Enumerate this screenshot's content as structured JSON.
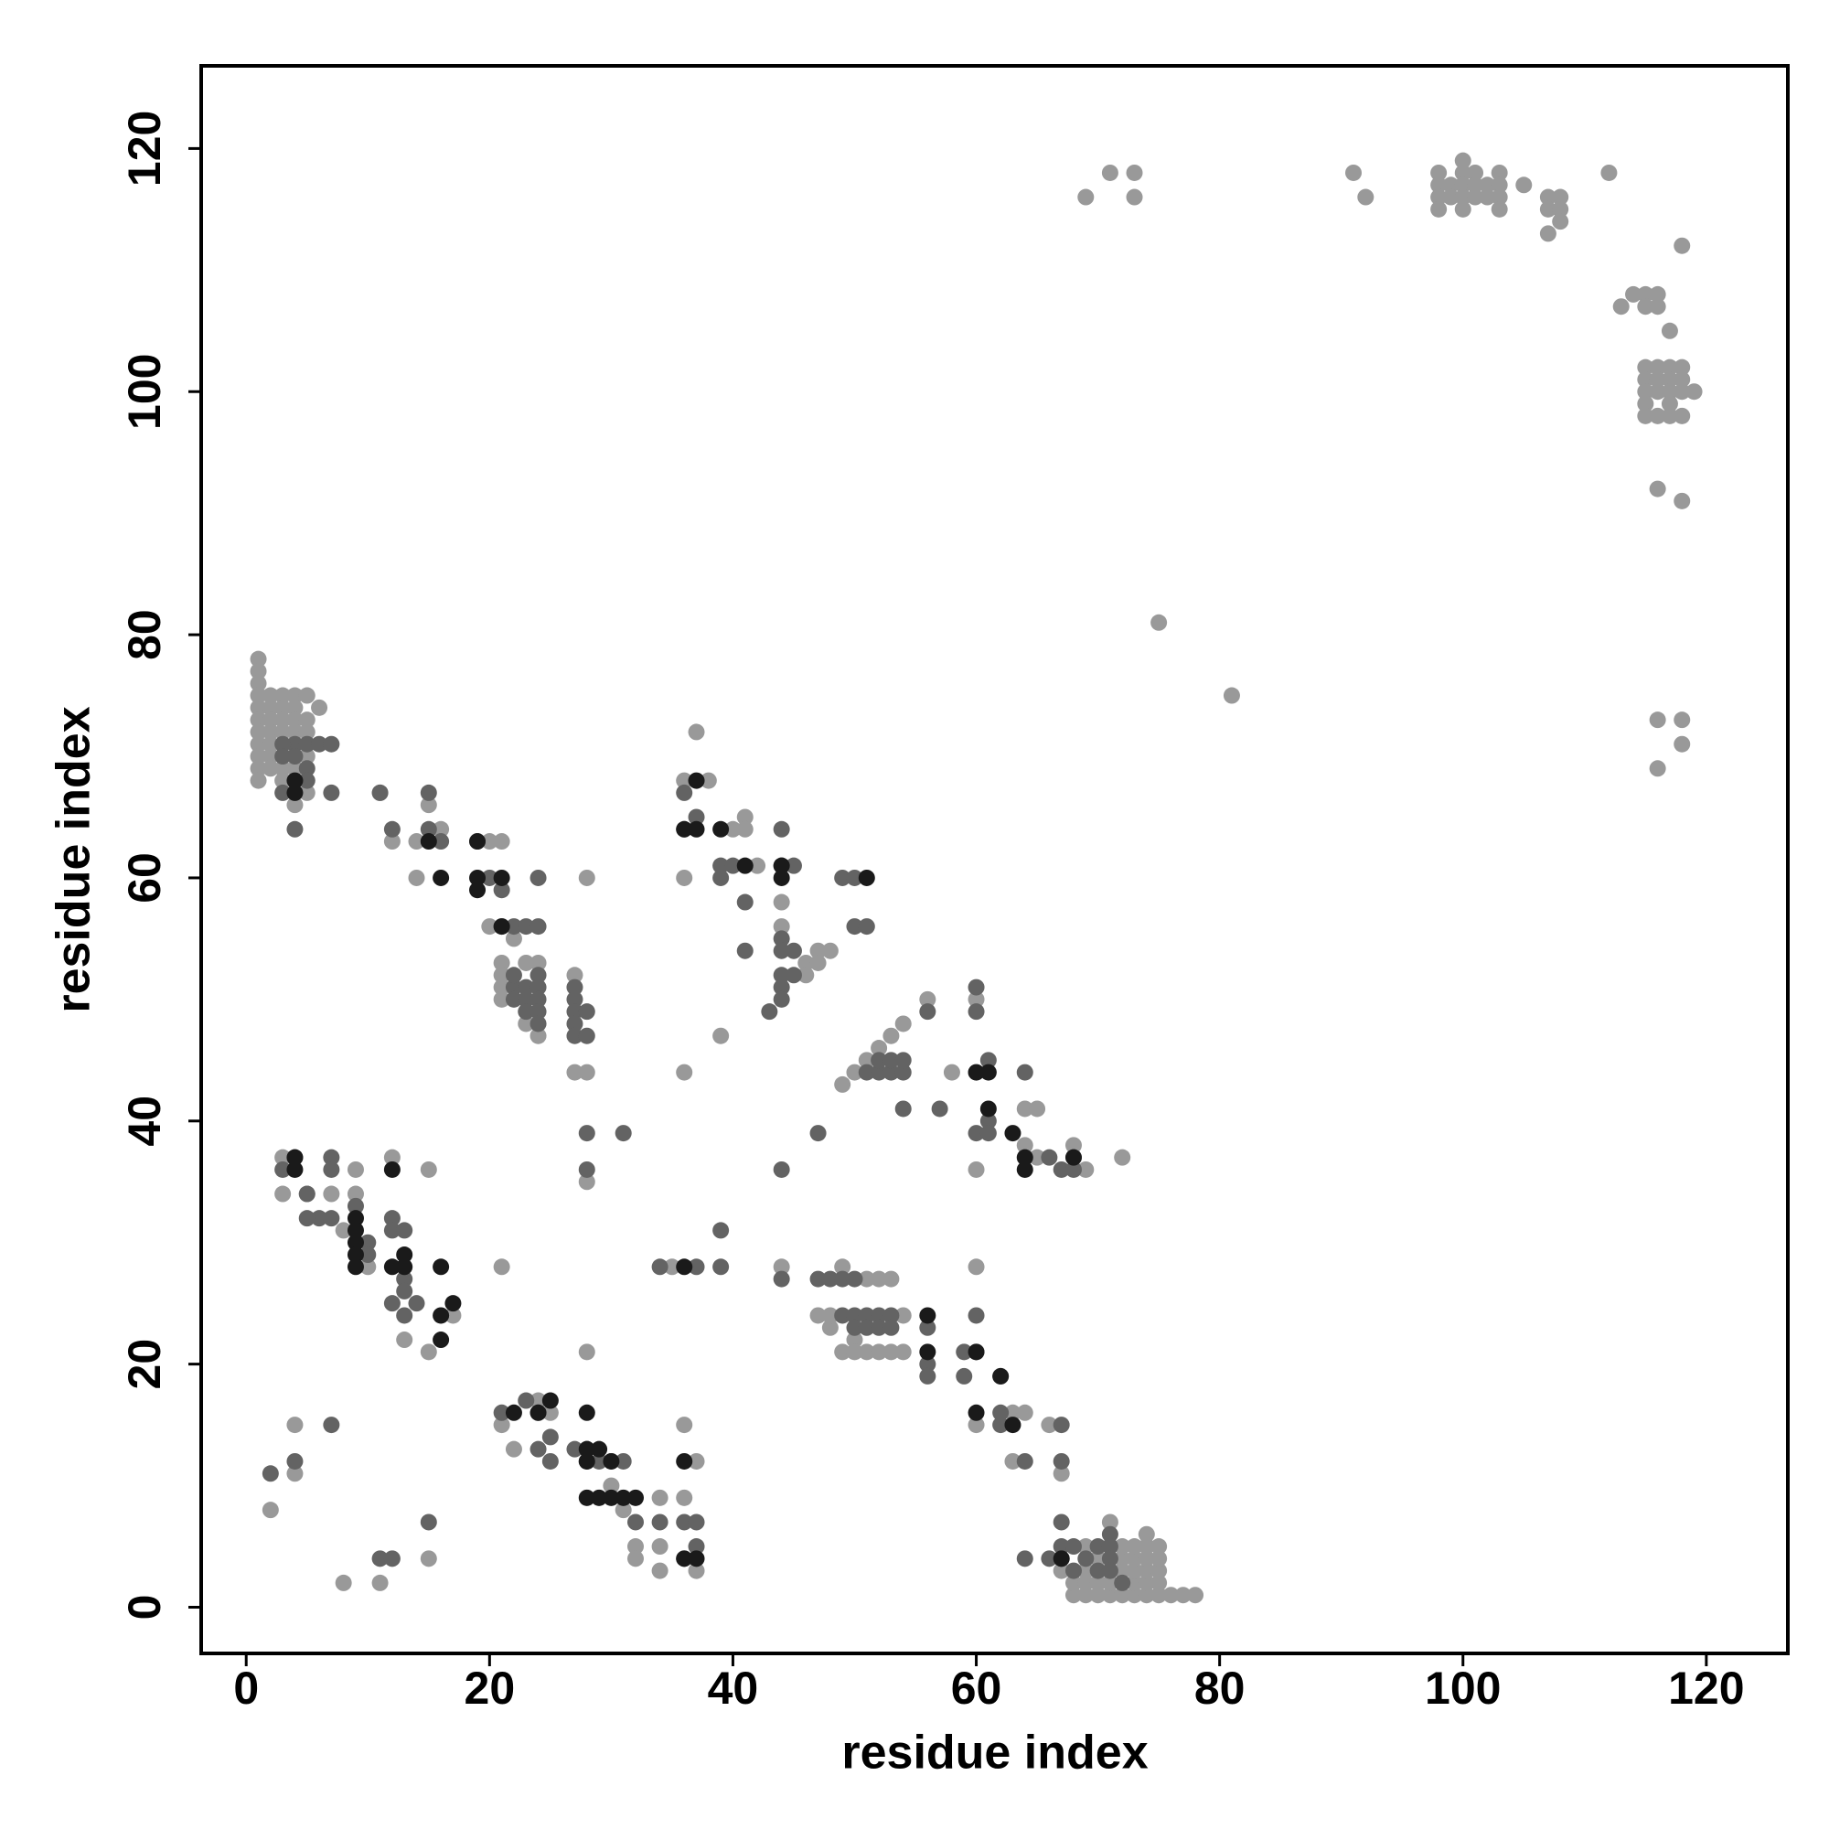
{
  "chart_data": {
    "type": "scatter",
    "xlabel": "residue index",
    "ylabel": "residue index",
    "xlim": [
      -3.7,
      126.7
    ],
    "ylim": [
      -3.8,
      126.8
    ],
    "xticks": [
      0,
      20,
      40,
      60,
      80,
      100,
      120
    ],
    "yticks": [
      0,
      20,
      40,
      60,
      80,
      100,
      120
    ],
    "series": [
      {
        "color": "#999999",
        "x": [
          69,
          71,
          73,
          73,
          91,
          92,
          98,
          98,
          98,
          98,
          99,
          99,
          100,
          100,
          100,
          100,
          100,
          101,
          101,
          101,
          102,
          102,
          103,
          103,
          103,
          103,
          105,
          107,
          107,
          107,
          108,
          108,
          108,
          112,
          113,
          114,
          115,
          115,
          116,
          116,
          117,
          118,
          115,
          115,
          115,
          115,
          115,
          116,
          116,
          116,
          116,
          117,
          117,
          117,
          117,
          117,
          118,
          118,
          118,
          118,
          119,
          116,
          118,
          75,
          81,
          116,
          118,
          118,
          116,
          1,
          1,
          1,
          1,
          1,
          1,
          1,
          1,
          1,
          1,
          1,
          2,
          2,
          2,
          2,
          2,
          2,
          2,
          3,
          3,
          3,
          3,
          3,
          3,
          3,
          4,
          4,
          4,
          4,
          4,
          5,
          5,
          5,
          5,
          6,
          4,
          5,
          68,
          69,
          70,
          71,
          72,
          73,
          74,
          75,
          76,
          77,
          78,
          68,
          69,
          70,
          71,
          72,
          73,
          74,
          75,
          69,
          70,
          72,
          73,
          74,
          75,
          70,
          72,
          73,
          74,
          75,
          69,
          72,
          73,
          74,
          75,
          74,
          71,
          67,
          28,
          28,
          27,
          36,
          28,
          28,
          2,
          8,
          11,
          15,
          4,
          4,
          3,
          3,
          5,
          9,
          9,
          7,
          8,
          12,
          15,
          13,
          15,
          17,
          10,
          21,
          22,
          21,
          25,
          24,
          36,
          36,
          34,
          34,
          32,
          32,
          34,
          37,
          37,
          31,
          30,
          37,
          36,
          36,
          38,
          40,
          41,
          41,
          44,
          44,
          42,
          46,
          47,
          48,
          46,
          47,
          49,
          50,
          51,
          52,
          53,
          54,
          56,
          58,
          60,
          60,
          60,
          64,
          65,
          68,
          72,
          60,
          44,
          35,
          47,
          48,
          50,
          49,
          50,
          51,
          52,
          53,
          54,
          54,
          51,
          52,
          53,
          49,
          48,
          63,
          63,
          64,
          67,
          60,
          66,
          64,
          65,
          69,
          21,
          21,
          21,
          21,
          23,
          23,
          24,
          24,
          27,
          15,
          16,
          14,
          12,
          20,
          21,
          11,
          22,
          20,
          14,
          39
        ],
        "y": [
          116,
          118,
          118,
          116,
          118,
          116,
          118,
          117,
          116,
          115,
          117,
          116,
          119,
          118,
          117,
          116,
          115,
          118,
          117,
          116,
          117,
          116,
          118,
          117,
          116,
          115,
          117,
          116,
          115,
          113,
          116,
          115,
          114,
          118,
          107,
          108,
          108,
          107,
          108,
          107,
          105,
          112,
          102,
          101,
          100,
          99,
          98,
          102,
          101,
          100,
          98,
          102,
          101,
          100,
          99,
          98,
          102,
          101,
          100,
          98,
          100,
          92,
          91,
          81,
          75,
          73,
          73,
          71,
          69,
          78,
          77,
          76,
          75,
          74,
          73,
          72,
          71,
          70,
          69,
          68,
          75,
          74,
          73,
          72,
          71,
          70,
          69,
          75,
          74,
          73,
          72,
          70,
          69,
          68,
          75,
          74,
          73,
          72,
          69,
          75,
          73,
          72,
          70,
          74,
          66,
          67,
          1,
          1,
          1,
          1,
          1,
          1,
          1,
          1,
          1,
          1,
          1,
          2,
          2,
          2,
          2,
          2,
          2,
          2,
          2,
          3,
          3,
          3,
          3,
          3,
          3,
          4,
          4,
          4,
          4,
          4,
          5,
          5,
          5,
          5,
          5,
          6,
          7,
          3,
          60,
          44,
          44,
          44,
          21,
          35,
          8,
          2,
          2,
          4,
          15,
          11,
          37,
          34,
          34,
          36,
          34,
          34,
          31,
          37,
          36,
          22,
          21,
          24,
          28,
          28,
          13,
          15,
          16,
          17,
          15,
          9,
          9,
          5,
          5,
          4,
          3,
          3,
          12,
          8,
          10,
          72,
          68,
          60,
          68,
          64,
          65,
          64,
          58,
          56,
          61,
          53,
          54,
          54,
          52,
          53,
          43,
          44,
          45,
          46,
          47,
          48,
          50,
          44,
          44,
          50,
          36,
          41,
          41,
          38,
          37,
          28,
          28,
          28,
          24,
          23,
          22,
          21,
          21,
          21,
          21,
          21,
          21,
          24,
          27,
          27,
          27,
          28,
          24,
          12,
          16,
          16,
          11,
          15,
          15,
          38,
          37,
          36,
          53,
          52,
          51,
          50,
          53,
          48,
          53,
          47,
          52,
          66,
          64,
          63,
          63,
          63,
          63,
          67,
          55,
          56,
          60,
          47
        ]
      },
      {
        "color": "#636363",
        "x": [
          4,
          3,
          5,
          3,
          4,
          5,
          5,
          6,
          7,
          3,
          4,
          7,
          2,
          4,
          7,
          11,
          12,
          15,
          3,
          4,
          5,
          7,
          7,
          6,
          5,
          7,
          9,
          10,
          10,
          12,
          12,
          13,
          13,
          12,
          13,
          14,
          13,
          19,
          12,
          11,
          15,
          15,
          16,
          20,
          21,
          24,
          22,
          21,
          23,
          24,
          22,
          22,
          22,
          23,
          23,
          23,
          24,
          24,
          24,
          24,
          24,
          27,
          27,
          27,
          27,
          27,
          28,
          28,
          28,
          28,
          31,
          36,
          37,
          36,
          39,
          39,
          40,
          41,
          41,
          44,
          44,
          44,
          44,
          44,
          44,
          44,
          45,
          45,
          45,
          43,
          47,
          44,
          44,
          39,
          39,
          34,
          47,
          48,
          49,
          50,
          49,
          50,
          50,
          51,
          51,
          52,
          52,
          53,
          53,
          51,
          52,
          52,
          53,
          53,
          54,
          54,
          54,
          56,
          56,
          56,
          56,
          57,
          60,
          60,
          59,
          59,
          60,
          60,
          60,
          61,
          61,
          61,
          62,
          62,
          62,
          64,
          64,
          64,
          66,
          66,
          67,
          67,
          67,
          68,
          68,
          67,
          67,
          68,
          68,
          67,
          69,
          70,
          70,
          71,
          71,
          71,
          71,
          72,
          34,
          36,
          37,
          36,
          37,
          32,
          31,
          30,
          29,
          28,
          27,
          24,
          25,
          25,
          21,
          23,
          37,
          28,
          24,
          49,
          50,
          51,
          50
        ],
        "y": [
          71,
          71,
          71,
          70,
          70,
          69,
          68,
          71,
          71,
          67,
          64,
          67,
          11,
          12,
          15,
          4,
          4,
          7,
          36,
          37,
          34,
          37,
          36,
          32,
          32,
          32,
          33,
          30,
          29,
          32,
          31,
          31,
          27,
          25,
          24,
          25,
          26,
          63,
          64,
          67,
          67,
          64,
          63,
          60,
          59,
          60,
          56,
          56,
          56,
          56,
          51,
          52,
          50,
          51,
          50,
          49,
          52,
          51,
          50,
          49,
          48,
          51,
          50,
          49,
          48,
          47,
          49,
          47,
          39,
          36,
          39,
          67,
          65,
          64,
          61,
          60,
          61,
          58,
          54,
          64,
          61,
          55,
          54,
          52,
          51,
          50,
          54,
          61,
          52,
          49,
          39,
          36,
          27,
          31,
          28,
          28,
          27,
          27,
          27,
          27,
          24,
          24,
          23,
          24,
          23,
          24,
          23,
          24,
          23,
          44,
          44,
          45,
          44,
          45,
          44,
          45,
          41,
          49,
          23,
          20,
          19,
          41,
          51,
          49,
          21,
          19,
          24,
          21,
          39,
          45,
          40,
          39,
          19,
          16,
          15,
          44,
          12,
          4,
          37,
          4,
          36,
          15,
          12,
          36,
          37,
          7,
          5,
          5,
          3,
          4,
          4,
          5,
          3,
          6,
          5,
          4,
          3,
          2,
          7,
          7,
          7,
          4,
          5,
          7,
          12,
          12,
          12,
          12,
          13,
          13,
          14,
          12,
          16,
          17,
          28,
          13,
          16,
          60,
          56,
          56,
          60
        ]
      },
      {
        "color": "#1a1a1a",
        "x": [
          4,
          4,
          4,
          4,
          12,
          9,
          9,
          9,
          9,
          9,
          12,
          13,
          13,
          16,
          17,
          16,
          16,
          15,
          16,
          19,
          19,
          19,
          21,
          21,
          37,
          36,
          37,
          39,
          41,
          44,
          44,
          51,
          60,
          61,
          61,
          63,
          64,
          64,
          68,
          56,
          56,
          60,
          60,
          62,
          63,
          67,
          22,
          24,
          25,
          28,
          28,
          29,
          28,
          28,
          29,
          30,
          31,
          32,
          36,
          36,
          37,
          36,
          30
        ],
        "y": [
          37,
          36,
          67,
          68,
          36,
          32,
          31,
          30,
          29,
          28,
          28,
          28,
          29,
          28,
          25,
          24,
          22,
          63,
          60,
          63,
          59,
          60,
          60,
          56,
          68,
          64,
          64,
          64,
          61,
          60,
          61,
          60,
          44,
          44,
          41,
          39,
          37,
          36,
          37,
          24,
          21,
          21,
          16,
          19,
          15,
          4,
          16,
          16,
          17,
          16,
          13,
          13,
          12,
          9,
          9,
          9,
          9,
          9,
          12,
          4,
          4,
          28,
          12
        ]
      }
    ]
  }
}
